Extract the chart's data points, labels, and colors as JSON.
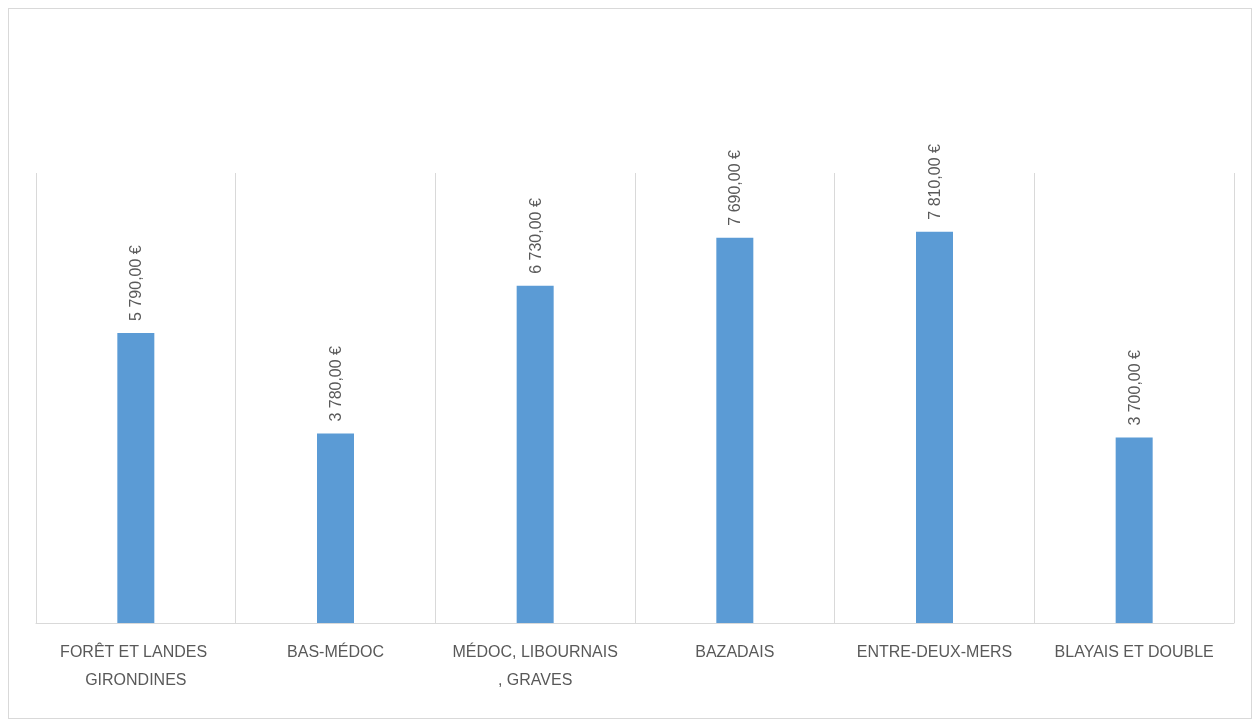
{
  "chart_data": {
    "type": "bar",
    "categories": [
      "FORÊT ET LANDES GIRONDINES",
      "BAS-MÉDOC",
      "MÉDOC, LIBOURNAIS, GRAVES",
      "BAZADAIS",
      "ENTRE-DEUX-MERS",
      "BLAYAIS ET DOUBLE"
    ],
    "values": [
      5790,
      3780,
      6730,
      7690,
      7810,
      3700
    ],
    "value_labels": [
      "5 790,00 €",
      "3 780,00 €",
      "6 730,00 €",
      "7 690,00 €",
      "7 810,00 €",
      "3 700,00 €"
    ],
    "color": "#5b9bd5",
    "grid": "x"
  }
}
